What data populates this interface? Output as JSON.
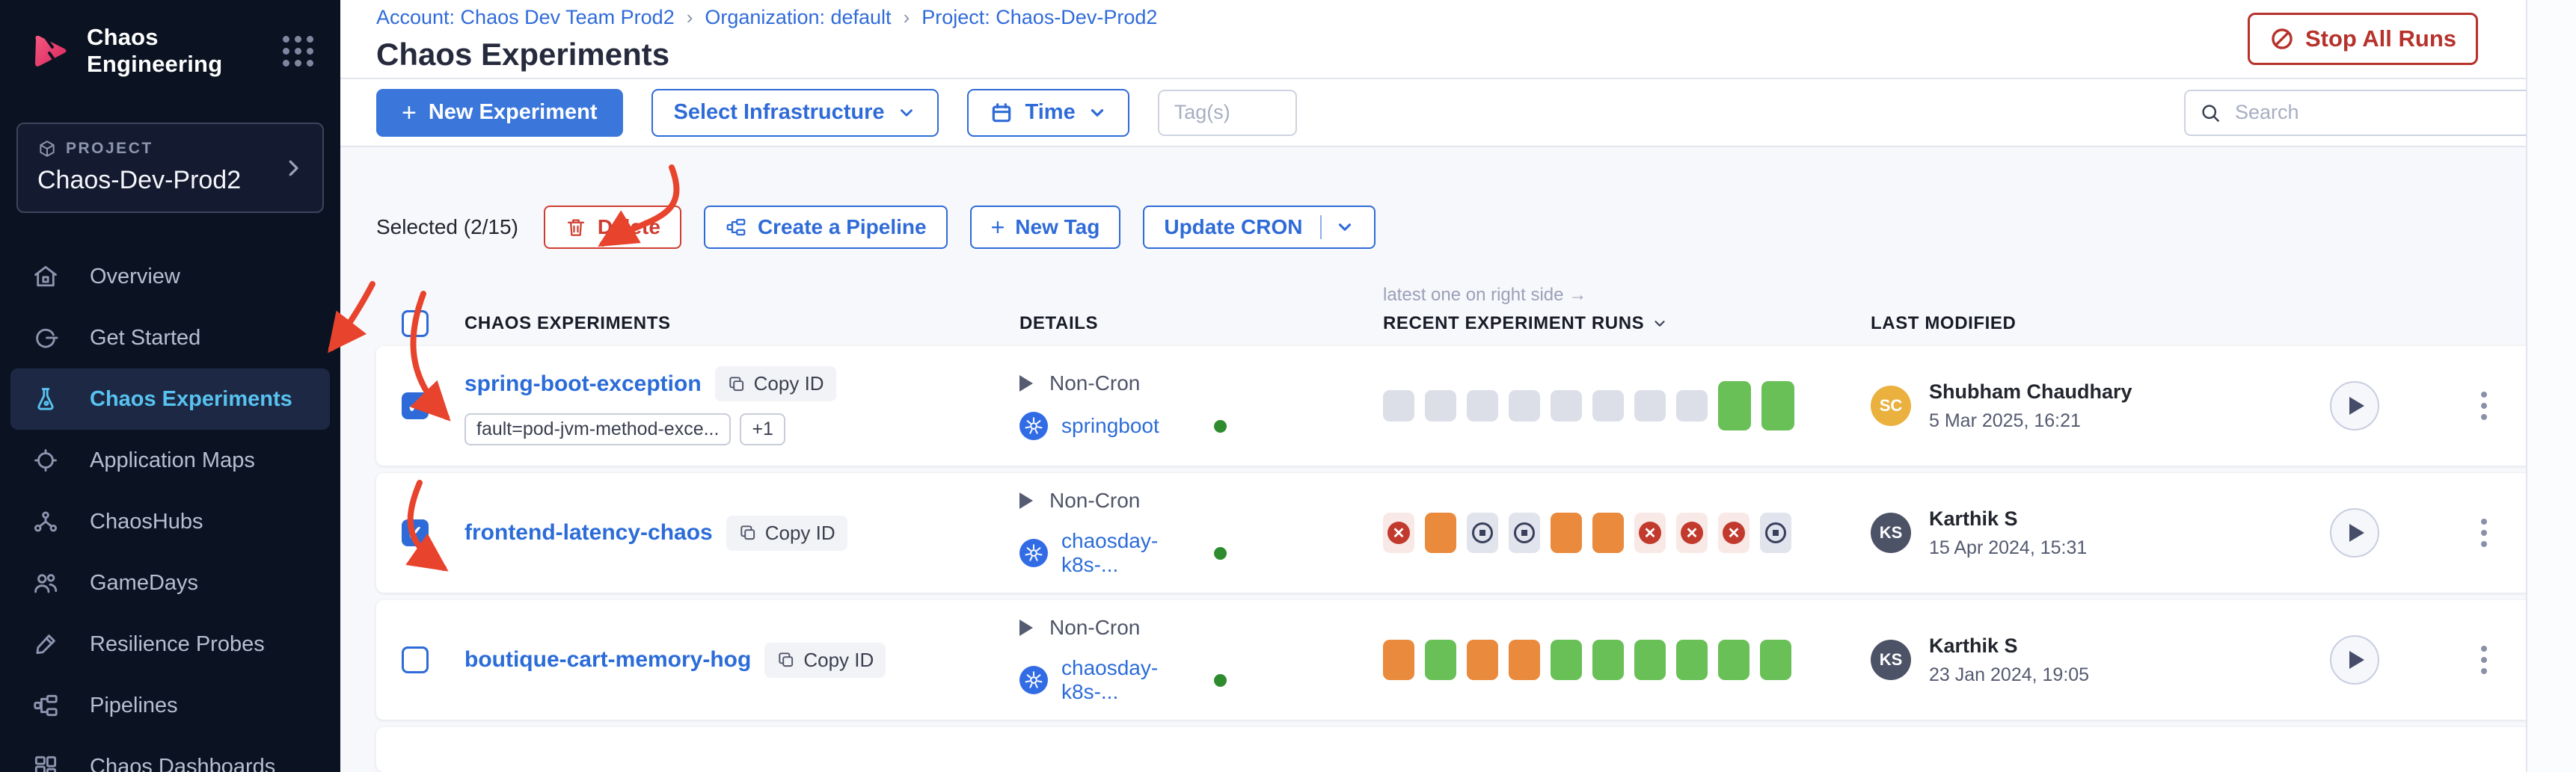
{
  "brand": {
    "app_title": "Chaos Engineering"
  },
  "project": {
    "label": "PROJECT",
    "name": "Chaos-Dev-Prod2"
  },
  "sidebar": {
    "items": [
      {
        "icon": "home-icon",
        "label": "Overview",
        "active": false
      },
      {
        "icon": "get-started-icon",
        "label": "Get Started",
        "active": false
      },
      {
        "icon": "flask-icon",
        "label": "Chaos Experiments",
        "active": true
      },
      {
        "icon": "target-icon",
        "label": "Application Maps",
        "active": false
      },
      {
        "icon": "hub-icon",
        "label": "ChaosHubs",
        "active": false
      },
      {
        "icon": "people-icon",
        "label": "GameDays",
        "active": false
      },
      {
        "icon": "probe-icon",
        "label": "Resilience Probes",
        "active": false
      },
      {
        "icon": "pipeline-icon",
        "label": "Pipelines",
        "active": false
      },
      {
        "icon": "dashboard-icon",
        "label": "Chaos Dashboards",
        "active": false
      }
    ]
  },
  "breadcrumb": {
    "items": [
      "Account: Chaos Dev Team Prod2",
      "Organization: default",
      "Project: Chaos-Dev-Prod2"
    ]
  },
  "page": {
    "title": "Chaos Experiments",
    "stop_all_label": "Stop All Runs"
  },
  "toolbar": {
    "new_experiment": "New Experiment",
    "select_infrastructure": "Select Infrastructure",
    "time": "Time",
    "tags_placeholder": "Tag(s)",
    "search_placeholder": "Search"
  },
  "bulkbar": {
    "selected": "Selected (2/15)",
    "delete": "Delete",
    "create_pipeline": "Create a Pipeline",
    "new_tag": "New Tag",
    "update_cron": "Update CRON"
  },
  "table": {
    "copy_label": "Copy ID",
    "runs_note": "latest one on right side →",
    "headers": {
      "experiments": "CHAOS EXPERIMENTS",
      "details": "DETAILS",
      "runs": "RECENT EXPERIMENT RUNS",
      "modified": "LAST MODIFIED"
    },
    "rows": [
      {
        "checked": true,
        "name": "spring-boot-exception",
        "tags": [
          "fault=pod-jvm-method-exce...",
          "+1"
        ],
        "cron": "Non-Cron",
        "infra": "springboot",
        "runs": [
          "empty",
          "empty",
          "empty",
          "empty",
          "empty",
          "empty",
          "empty",
          "empty",
          "passed-latest",
          "passed-latest"
        ],
        "modified": {
          "initials": "SC",
          "name": "Shubham Chaudhary",
          "date": "5 Mar 2025, 16:21",
          "color": "#eab13f"
        }
      },
      {
        "checked": true,
        "name": "frontend-latency-chaos",
        "tags": [],
        "cron": "Non-Cron",
        "infra": "chaosday-k8s-...",
        "runs": [
          "failed",
          "running",
          "stopped",
          "stopped",
          "running",
          "running",
          "failed",
          "failed",
          "failed",
          "stopped"
        ],
        "modified": {
          "initials": "KS",
          "name": "Karthik S",
          "date": "15 Apr 2024, 15:31",
          "color": "#4d5366"
        }
      },
      {
        "checked": false,
        "name": "boutique-cart-memory-hog",
        "tags": [],
        "cron": "Non-Cron",
        "infra": "chaosday-k8s-...",
        "runs": [
          "running",
          "passed",
          "running",
          "running",
          "passed",
          "passed",
          "passed",
          "passed",
          "passed",
          "passed"
        ],
        "modified": {
          "initials": "KS",
          "name": "Karthik S",
          "date": "23 Jan 2024, 19:05",
          "color": "#4d5366"
        }
      }
    ]
  },
  "colors": {
    "accent_pink": "#e0235c",
    "primary_blue": "#2f6bd8",
    "danger_red": "#b6322b",
    "run_passed": "#68c057",
    "run_running": "#e98a3d",
    "run_failed": "#c23a2e",
    "run_empty": "#dcdfe8",
    "annotation_arrow": "#e8432c",
    "sidebar_bg": "#0b1322"
  }
}
